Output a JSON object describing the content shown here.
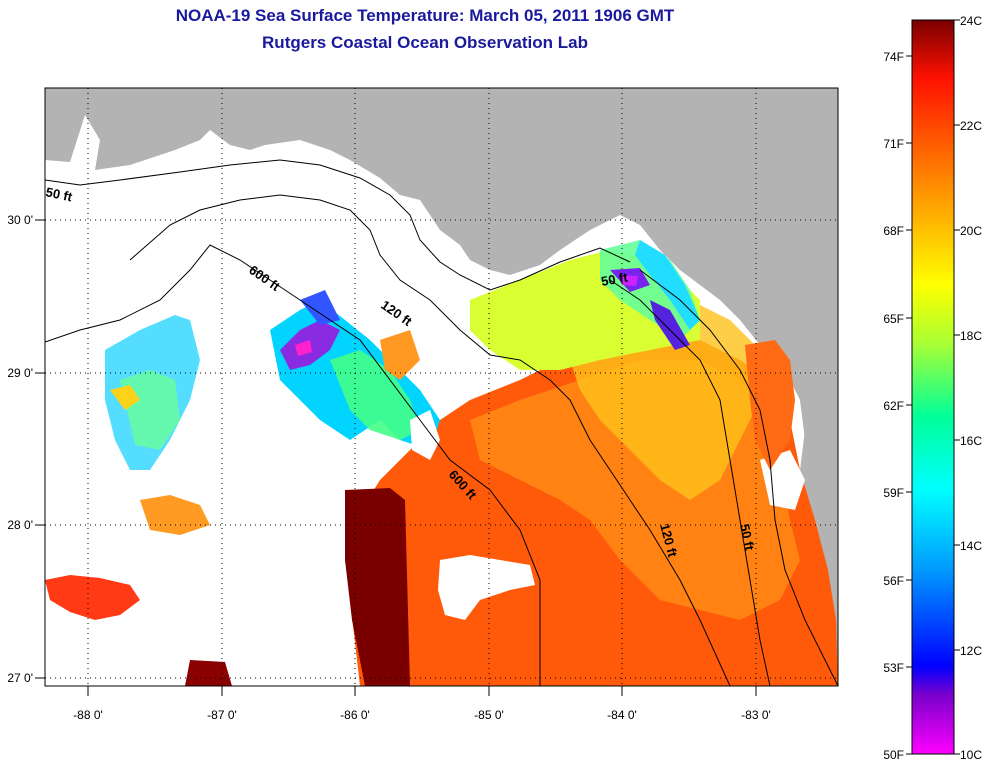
{
  "title": "NOAA-19 Sea Surface Temperature:  March 05, 2011 1906 GMT",
  "subtitle": "Rutgers Coastal Ocean Observation Lab",
  "map": {
    "lon_ticks": [
      "-88 0'",
      "-87 0'",
      "-86 0'",
      "-85 0'",
      "-84 0'",
      "-83 0'"
    ],
    "lat_ticks": [
      "30 0'",
      "29 0'",
      "28 0'",
      "27 0'"
    ],
    "contour_labels": [
      "50 ft",
      "600 ft",
      "120 ft",
      "50 ft",
      "600 ft",
      "120 ft",
      "50 ft"
    ],
    "colors": {
      "land": "#b3b3b3",
      "cloud": "#ffffff",
      "contour": "#000000"
    }
  },
  "colorbar": {
    "celsius_labels": [
      "24C",
      "22C",
      "20C",
      "18C",
      "16C",
      "14C",
      "12C",
      "10C"
    ],
    "fahrenheit_labels": [
      "74F",
      "71F",
      "68F",
      "65F",
      "62F",
      "59F",
      "56F",
      "53F",
      "50F"
    ],
    "scale_colors": [
      "#ff00ff",
      "#6600cc",
      "#0000ff",
      "#00aaff",
      "#00ffff",
      "#00ff99",
      "#99ff33",
      "#ffff00",
      "#ffaa00",
      "#ff6600",
      "#ff2200",
      "#cc0000",
      "#7a0000"
    ]
  }
}
